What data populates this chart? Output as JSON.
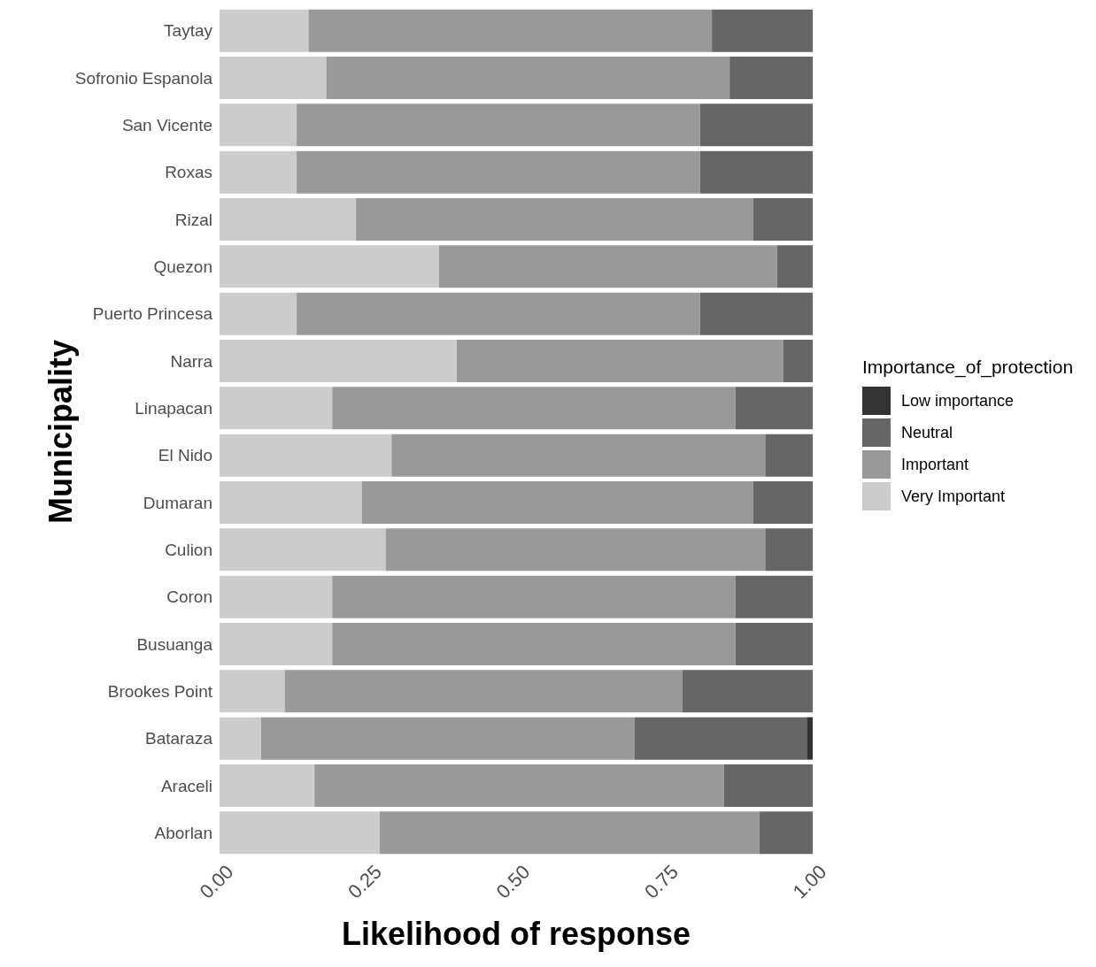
{
  "chart_data": {
    "type": "bar",
    "orientation": "horizontal",
    "stacked": true,
    "xlabel": "Likelihood of response",
    "ylabel": "Municipality",
    "legend_title": "Importance_of_protection",
    "legend": "right",
    "grid": false,
    "categories": [
      "Taytay",
      "Sofronio Espanola",
      "San Vicente",
      "Roxas",
      "Rizal",
      "Quezon",
      "Puerto Princesa",
      "Narra",
      "Linapacan",
      "El Nido",
      "Dumaran",
      "Culion",
      "Coron",
      "Busuanga",
      "Brookes Point",
      "Bataraza",
      "Araceli",
      "Aborlan"
    ],
    "xlim": [
      0,
      1
    ],
    "xticks": [
      {
        "value": 0,
        "label": "0.00"
      },
      {
        "value": 0.25,
        "label": "0.25"
      },
      {
        "value": 0.5,
        "label": "0.50"
      },
      {
        "value": 0.75,
        "label": "0.75"
      },
      {
        "value": 1,
        "label": "1.00"
      }
    ],
    "series": [
      {
        "name": "Very Important",
        "color": "#cccccc",
        "values": [
          0.15,
          0.18,
          0.13,
          0.13,
          0.23,
          0.37,
          0.13,
          0.4,
          0.19,
          0.29,
          0.24,
          0.28,
          0.19,
          0.19,
          0.11,
          0.07,
          0.16,
          0.27
        ]
      },
      {
        "name": "Important",
        "color": "#999999",
        "values": [
          0.68,
          0.68,
          0.68,
          0.68,
          0.67,
          0.57,
          0.68,
          0.55,
          0.68,
          0.63,
          0.66,
          0.64,
          0.68,
          0.68,
          0.67,
          0.63,
          0.69,
          0.64
        ]
      },
      {
        "name": "Neutral",
        "color": "#666666",
        "values": [
          0.17,
          0.14,
          0.19,
          0.19,
          0.1,
          0.06,
          0.19,
          0.05,
          0.13,
          0.08,
          0.1,
          0.08,
          0.13,
          0.13,
          0.22,
          0.29,
          0.15,
          0.09
        ]
      },
      {
        "name": "Low importance",
        "color": "#333333",
        "values": [
          0,
          0,
          0,
          0,
          0,
          0,
          0,
          0,
          0,
          0,
          0,
          0,
          0,
          0,
          0,
          0.01,
          0,
          0
        ]
      }
    ]
  }
}
